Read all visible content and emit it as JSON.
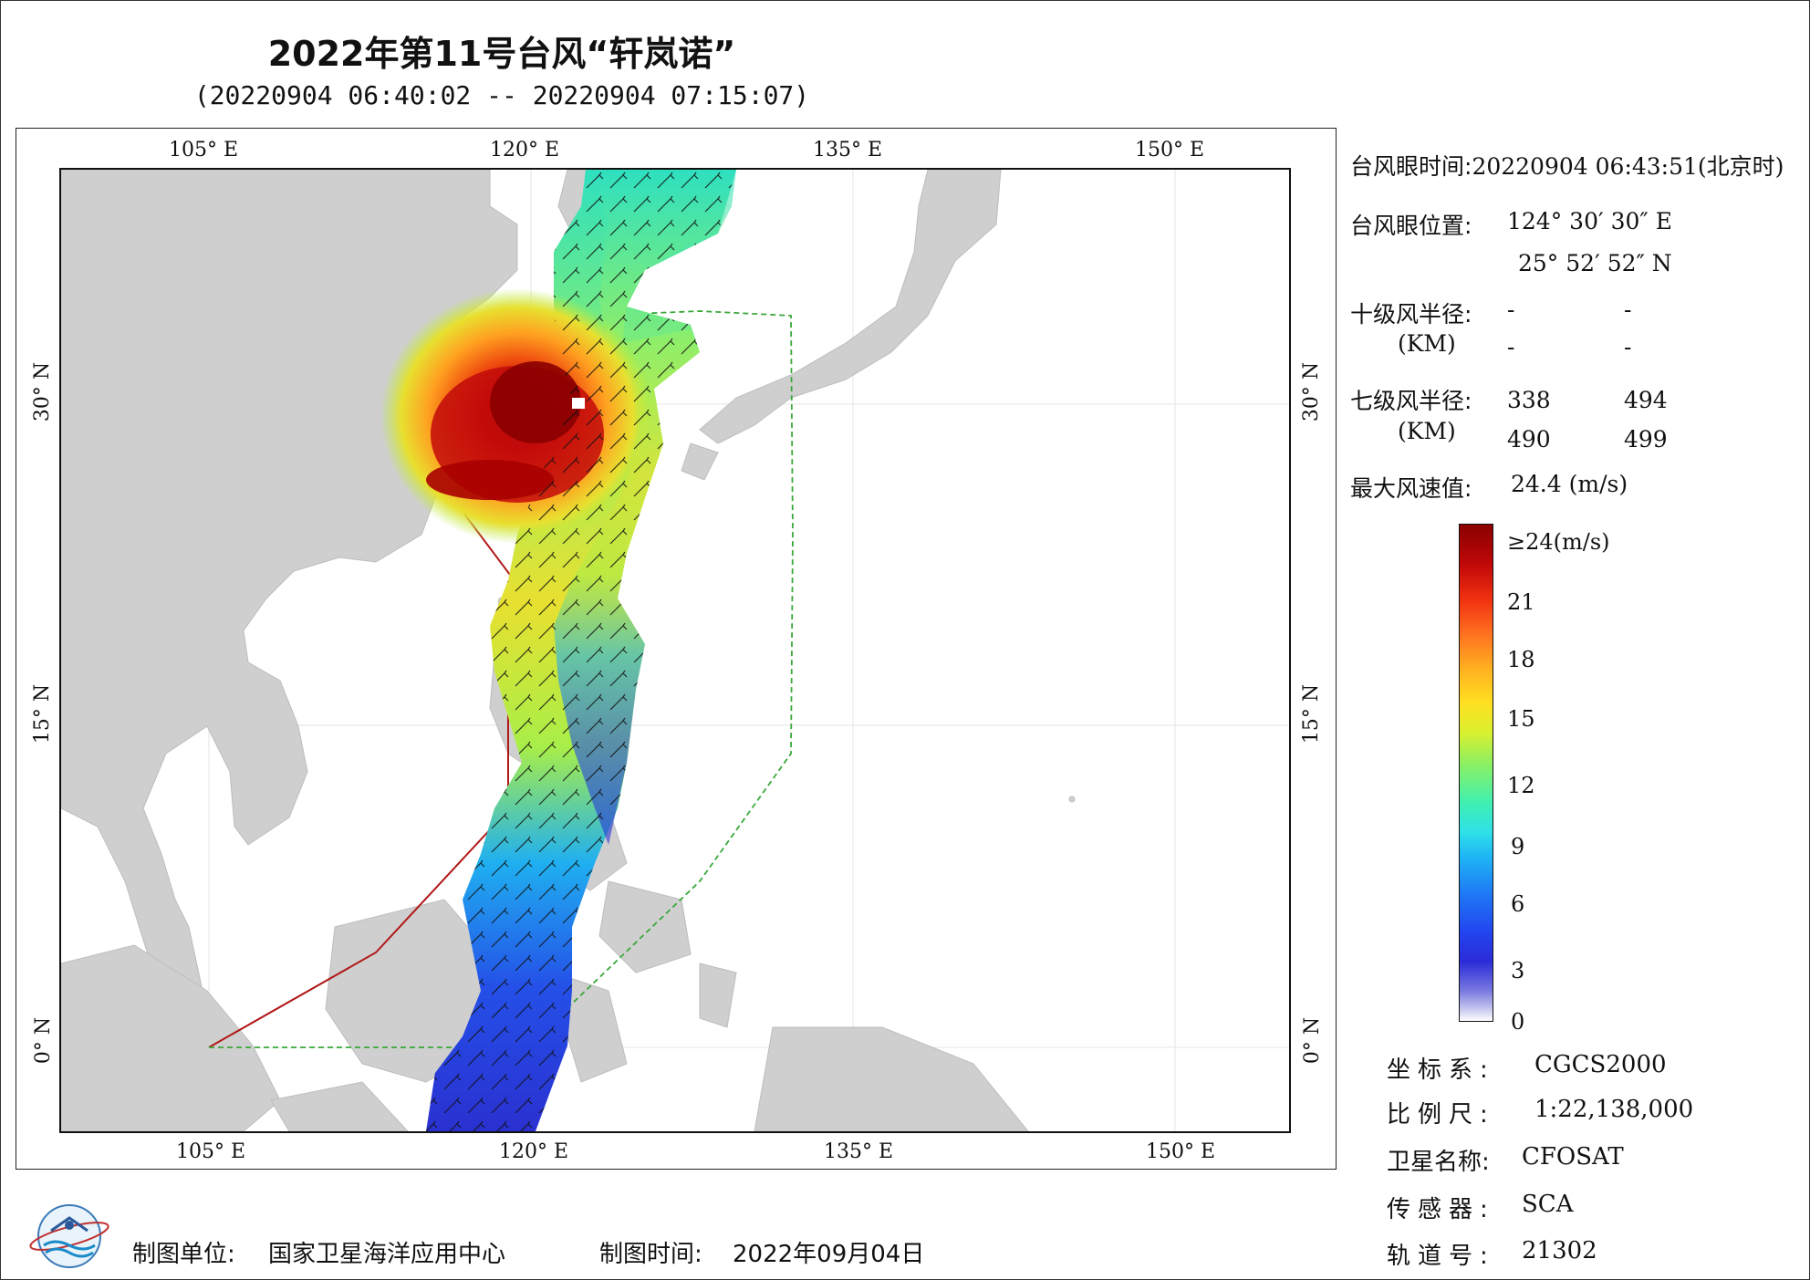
{
  "title": "2022年第11号台风“轩岚诺”",
  "subtitle": "(20220904 06:40:02 -- 20220904 07:15:07)",
  "axes": {
    "lon_ticks": [
      "105° E",
      "120° E",
      "135° E",
      "150° E"
    ],
    "lat_ticks": [
      "30° N",
      "15° N",
      "0° N"
    ]
  },
  "panel": {
    "eye_time_label": "台风眼时间:",
    "eye_time_value": "20220904 06:43:51(北京时)",
    "eye_pos_label": "台风眼位置:",
    "eye_lon": "124° 30′ 30″ E",
    "eye_lat": "25° 52′ 52″ N",
    "r10_label": "十级风半径:",
    "r10_unit": "(KM)",
    "r10_values": [
      "-",
      "-",
      "-",
      "-"
    ],
    "r7_label": "七级风半径:",
    "r7_unit": "(KM)",
    "r7_values": [
      "338",
      "494",
      "490",
      "499"
    ],
    "max_wind_label": "最大风速值:",
    "max_wind_value": "24.4  (m/s)"
  },
  "colorbar": {
    "labels": [
      "≥24(m/s)",
      "21",
      "18",
      "15",
      "12",
      "9",
      "6",
      "3",
      "0"
    ]
  },
  "metadata": {
    "crs_label": "坐标系:",
    "crs_value": "CGCS2000",
    "scale_label": "比例尺:",
    "scale_value": "1:22,138,000",
    "satellite_label": "卫星名称:",
    "satellite_value": "CFOSAT",
    "sensor_label": "传感器:",
    "sensor_value": "SCA",
    "orbit_label": "轨道号:",
    "orbit_value": "21302"
  },
  "footer": {
    "unit_label": "制图单位:",
    "unit_value": "国家卫星海洋应用中心",
    "date_label": "制图时间:",
    "date_value": "2022年09月04日"
  },
  "colors": {
    "land": "#cfcfcf",
    "grid": "#e6e6e6",
    "boundary_red": "#b01818",
    "boundary_green": "#3aa83a",
    "wind_max": "#8a0000",
    "wind_min": "#ffffff"
  }
}
